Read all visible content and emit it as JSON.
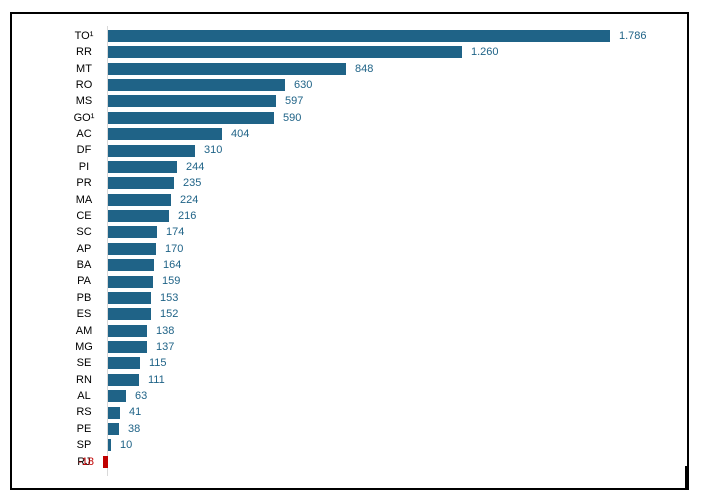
{
  "chart_data": {
    "type": "bar",
    "orientation": "horizontal",
    "title": "",
    "xlabel": "",
    "ylabel": "",
    "grid": false,
    "legend": false,
    "xlim": [
      -18,
      1786
    ],
    "categories": [
      "TO¹",
      "RR",
      "MT",
      "RO",
      "MS",
      "GO¹",
      "AC",
      "DF",
      "PI",
      "PR",
      "MA",
      "CE",
      "SC",
      "AP",
      "BA",
      "PA",
      "PB",
      "ES",
      "AM",
      "MG",
      "SE",
      "RN",
      "AL",
      "RS",
      "PE",
      "SP",
      "RJ"
    ],
    "values": [
      1786,
      1260,
      848,
      630,
      597,
      590,
      404,
      310,
      244,
      235,
      224,
      216,
      174,
      170,
      164,
      159,
      153,
      152,
      138,
      137,
      115,
      111,
      63,
      41,
      38,
      10,
      -18
    ],
    "value_labels": [
      "1.786",
      "1.260",
      "848",
      "630",
      "597",
      "590",
      "404",
      "310",
      "244",
      "235",
      "224",
      "216",
      "174",
      "170",
      "164",
      "159",
      "153",
      "152",
      "138",
      "137",
      "115",
      "111",
      "63",
      "41",
      "38",
      "10",
      "-18"
    ],
    "colors": {
      "bar_positive": "#1f6387",
      "bar_negative": "#c00000",
      "value_text_positive": "#1f6387",
      "value_text_negative": "#c00000",
      "category_text": "#000000",
      "axis_line": "#d9d9d9",
      "frame_border": "#000000"
    }
  }
}
